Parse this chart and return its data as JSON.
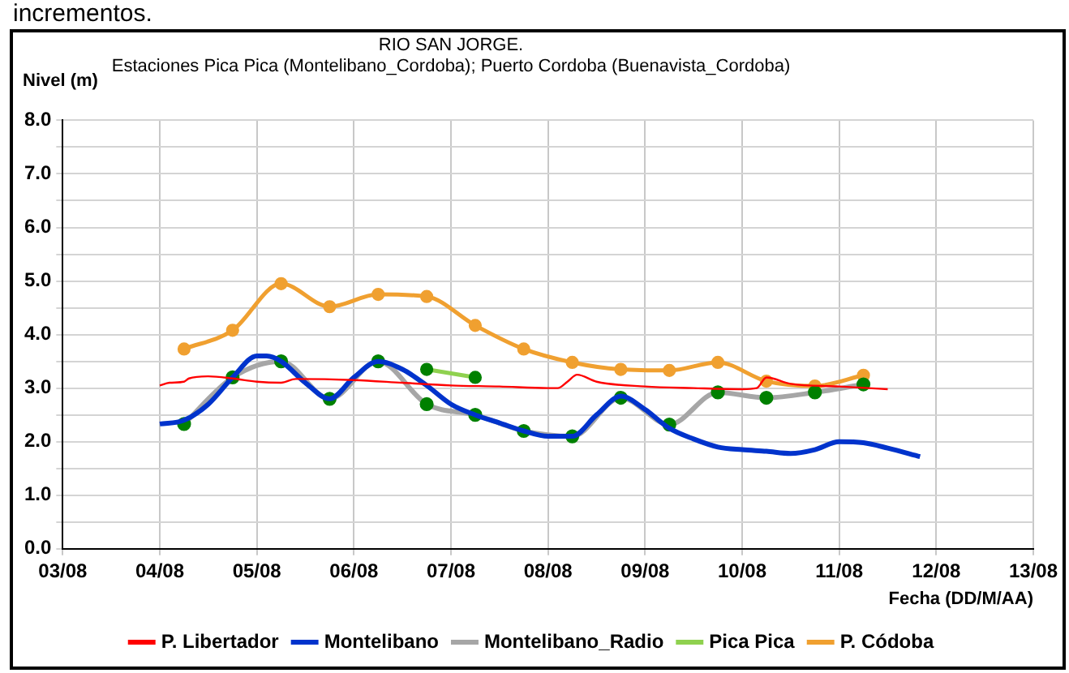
{
  "chart_data": {
    "type": "line",
    "title": "RIO SAN JORGE.",
    "subtitle": "Estaciones Pica Pica (Montelibano_Cordoba); Puerto Cordoba (Buenavista_Cordoba)",
    "ylabel": "Nivel (m)",
    "xlabel": "Fecha (DD/M/AA)",
    "annotations": [
      "incrementos."
    ],
    "xlim": [
      "--08-03",
      "--08-13"
    ],
    "xticks": [
      {
        "value": "--08-03",
        "label": "03/08"
      },
      {
        "value": "--08-04",
        "label": "04/08"
      },
      {
        "value": "--08-05",
        "label": "05/08"
      },
      {
        "value": "--08-06",
        "label": "06/08"
      },
      {
        "value": "--08-07",
        "label": "07/08"
      },
      {
        "value": "--08-08",
        "label": "08/08"
      },
      {
        "value": "--08-09",
        "label": "09/08"
      },
      {
        "value": "--08-10",
        "label": "10/08"
      },
      {
        "value": "--08-11",
        "label": "11/08"
      },
      {
        "value": "--08-12",
        "label": "12/08"
      },
      {
        "value": "--08-13",
        "label": "13/08"
      }
    ],
    "ylim": [
      0,
      8
    ],
    "yticks": [
      {
        "value": 0,
        "label": "0.0"
      },
      {
        "value": 0.5,
        "label": null
      },
      {
        "value": 1,
        "label": "1.0"
      },
      {
        "value": 1.5,
        "label": null
      },
      {
        "value": 2,
        "label": "2.0"
      },
      {
        "value": 2.5,
        "label": null
      },
      {
        "value": 3,
        "label": "3.0"
      },
      {
        "value": 3.5,
        "label": null
      },
      {
        "value": 4,
        "label": "4.0"
      },
      {
        "value": 4.5,
        "label": null
      },
      {
        "value": 5,
        "label": "5.0"
      },
      {
        "value": 5.5,
        "label": null
      },
      {
        "value": 6,
        "label": "6.0"
      },
      {
        "value": 6.5,
        "label": null
      },
      {
        "value": 7,
        "label": "7.0"
      },
      {
        "value": 7.5,
        "label": null
      },
      {
        "value": 8,
        "label": "8.0"
      }
    ],
    "grid": true,
    "legend": "bottom",
    "series": [
      {
        "name": "P. Libertador",
        "color": "#ff0000",
        "marker": "none",
        "x": [
          "--08-04",
          "--08-04T02:24",
          "--08-04T06:00",
          "--08-04T07:12",
          "--08-04T12:00",
          "--08-04T18:00",
          "--08-05",
          "--08-05T06:00",
          "--08-05T09:36",
          "--08-06",
          "--08-06T12:00",
          "--08-07",
          "--08-07T12:00",
          "--08-08",
          "--08-08T02:24",
          "--08-08T04:48",
          "--08-08T07:12",
          "--08-08T12:00",
          "--08-09",
          "--08-09T12:00",
          "--08-10",
          "--08-10T03:36",
          "--08-10T06:00",
          "--08-10T12:00",
          "--08-11",
          "--08-11T12:00"
        ],
        "values": [
          3.05,
          3.1,
          3.12,
          3.18,
          3.22,
          3.18,
          3.12,
          3.1,
          3.17,
          3.15,
          3.1,
          3.05,
          3.03,
          3.0,
          3.0,
          3.12,
          3.25,
          3.12,
          3.03,
          3.0,
          2.98,
          3.0,
          3.2,
          3.08,
          3.03,
          2.98
        ]
      },
      {
        "name": "Montelibano",
        "color": "#0033cc",
        "marker": "none",
        "x": [
          "--08-04",
          "--08-04T06:00",
          "--08-04T12:00",
          "--08-04T18:00",
          "--08-05",
          "--08-05T02:24",
          "--08-05T06:00",
          "--08-05T12:00",
          "--08-05T18:00",
          "--08-06",
          "--08-06T06:00",
          "--08-06T12:00",
          "--08-06T18:00",
          "--08-07",
          "--08-07T06:00",
          "--08-07T12:00",
          "--08-07T18:00",
          "--08-08",
          "--08-08T06:00",
          "--08-08T12:00",
          "--08-08T18:00",
          "--08-09",
          "--08-09T06:00",
          "--08-09T12:00",
          "--08-09T18:00",
          "--08-10",
          "--08-10T06:00",
          "--08-10T12:00",
          "--08-10T18:00",
          "--08-11",
          "--08-11T06:00",
          "--08-11T12:00",
          "--08-11T20:00"
        ],
        "values": [
          2.33,
          2.4,
          2.7,
          3.2,
          3.6,
          3.6,
          3.5,
          3.1,
          2.8,
          3.2,
          3.5,
          3.35,
          3.05,
          2.7,
          2.5,
          2.35,
          2.2,
          2.1,
          2.1,
          2.5,
          2.85,
          2.6,
          2.25,
          2.05,
          1.9,
          1.85,
          1.82,
          1.78,
          1.85,
          2.0,
          1.98,
          1.88,
          1.72
        ]
      },
      {
        "name": "Montelibano_Radio",
        "color": "#a6a6a6",
        "marker": "circle",
        "colors": [
          "#008000",
          "#008000",
          "#008000",
          "#008000",
          "#008000",
          "#008000",
          "#008000",
          "#008000",
          "#008000",
          "#008000",
          "#008000",
          "#008000",
          "#008000",
          "#008000",
          "#008000"
        ],
        "x": [
          "--08-04T06:00",
          "--08-04T18:00",
          "--08-05T06:00",
          "--08-05T18:00",
          "--08-06T06:00",
          "--08-06T18:00",
          "--08-07T06:00",
          "--08-07T18:00",
          "--08-08T06:00",
          "--08-08T18:00",
          "--08-09T06:00",
          "--08-09T18:00",
          "--08-10T06:00",
          "--08-10T18:00",
          "--08-11T06:00"
        ],
        "values": [
          2.33,
          3.2,
          3.5,
          2.8,
          3.5,
          2.7,
          2.5,
          2.2,
          2.1,
          2.82,
          2.32,
          2.92,
          2.82,
          2.92,
          3.07
        ]
      },
      {
        "name": "Pica Pica",
        "color": "#8fd14f",
        "marker": "circle",
        "colors": [
          "#008000",
          "#008000"
        ],
        "x": [
          "--08-06T18:00",
          "--08-07T06:00"
        ],
        "values": [
          3.35,
          3.2
        ]
      },
      {
        "name": "P. Códoba",
        "color": "#f0a030",
        "marker": "circle",
        "x": [
          "--08-04T06:00",
          "--08-04T18:00",
          "--08-05T06:00",
          "--08-05T18:00",
          "--08-06T06:00",
          "--08-06T18:00",
          "--08-07T06:00",
          "--08-07T18:00",
          "--08-08T06:00",
          "--08-08T18:00",
          "--08-09T06:00",
          "--08-09T18:00",
          "--08-10T06:00",
          "--08-10T18:00",
          "--08-11T06:00"
        ],
        "values": [
          3.73,
          4.08,
          4.95,
          4.52,
          4.75,
          4.71,
          4.17,
          3.73,
          3.48,
          3.35,
          3.33,
          3.48,
          3.13,
          3.04,
          3.24
        ]
      }
    ]
  }
}
